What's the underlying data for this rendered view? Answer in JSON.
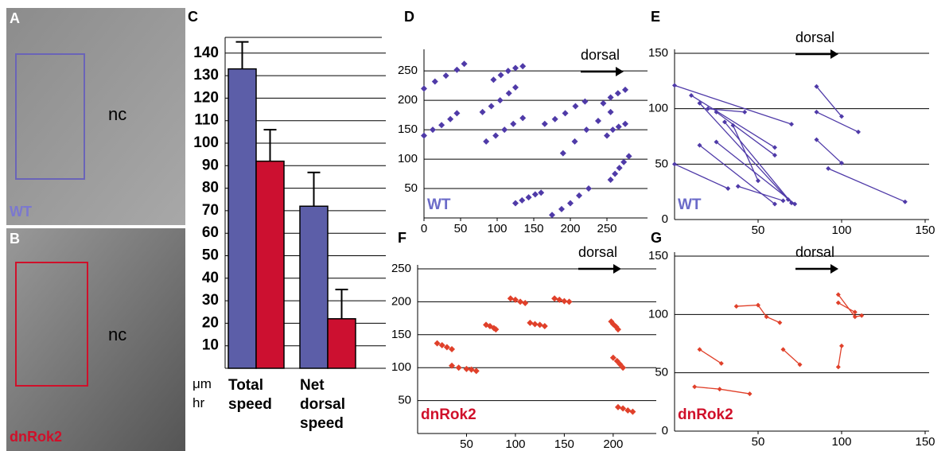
{
  "images": [
    {
      "panel": "A",
      "label": "nc",
      "genotype": "WT",
      "box_color": "#6a64b8",
      "genotype_color": "#7b78d0"
    },
    {
      "panel": "B",
      "label": "nc",
      "genotype": "dnRok2",
      "box_color": "#d0102a",
      "genotype_color": "#d0102a"
    }
  ],
  "chart_data": [
    {
      "type": "bar",
      "panel": "C",
      "categories": [
        "Total speed",
        "Net dorsal speed"
      ],
      "unit": "μm hr",
      "series": [
        {
          "color": "#5c5ea8",
          "values": [
            133,
            72
          ],
          "errors": [
            12,
            15
          ]
        },
        {
          "color": "#cc1030",
          "values": [
            92,
            22
          ],
          "errors": [
            14,
            13
          ]
        }
      ],
      "ylim": [
        0,
        147
      ],
      "yticks": [
        10,
        20,
        30,
        40,
        50,
        60,
        70,
        80,
        90,
        100,
        110,
        120,
        130,
        140
      ],
      "grid": true
    },
    {
      "type": "scatter",
      "panel": "D",
      "color": "#4f3aa8",
      "annotations": [
        "dorsal",
        "WT"
      ],
      "label_color": "#6a6ac8",
      "tracks": [
        {
          "x": [
            0,
            15,
            30,
            45,
            55
          ],
          "y": [
            220,
            232,
            242,
            252,
            262
          ]
        },
        {
          "x": [
            0,
            12,
            24,
            36,
            45
          ],
          "y": [
            140,
            150,
            158,
            168,
            178
          ]
        },
        {
          "x": [
            80,
            92,
            104,
            116,
            125
          ],
          "y": [
            180,
            190,
            200,
            212,
            222
          ]
        },
        {
          "x": [
            95,
            105,
            115,
            125,
            135
          ],
          "y": [
            235,
            243,
            250,
            255,
            258
          ]
        },
        {
          "x": [
            85,
            98,
            110,
            122,
            135
          ],
          "y": [
            130,
            140,
            150,
            160,
            170
          ]
        },
        {
          "x": [
            125,
            134,
            143,
            152,
            160
          ],
          "y": [
            25,
            30,
            35,
            40,
            43
          ]
        },
        {
          "x": [
            175,
            188,
            200,
            212,
            225
          ],
          "y": [
            5,
            15,
            25,
            38,
            50
          ]
        },
        {
          "x": [
            165,
            179,
            193,
            207,
            220
          ],
          "y": [
            160,
            168,
            178,
            190,
            198
          ]
        },
        {
          "x": [
            190,
            206,
            222,
            238,
            255
          ],
          "y": [
            110,
            130,
            150,
            165,
            180
          ]
        },
        {
          "x": [
            245,
            255,
            265,
            275
          ],
          "y": [
            195,
            205,
            212,
            218
          ]
        },
        {
          "x": [
            255,
            261,
            267,
            273,
            280
          ],
          "y": [
            65,
            75,
            85,
            95,
            105
          ]
        },
        {
          "x": [
            250,
            258,
            266,
            275
          ],
          "y": [
            140,
            150,
            155,
            160
          ]
        }
      ],
      "xlim": [
        0,
        300
      ],
      "xticks": [
        0,
        50,
        100,
        150,
        200,
        250
      ],
      "ylim": [
        0,
        280
      ],
      "yticks": [
        50,
        100,
        150,
        200,
        250
      ],
      "grid": true
    },
    {
      "type": "line",
      "panel": "E",
      "color": "#4f3aa8",
      "annotations": [
        "dorsal",
        "WT"
      ],
      "label_color": "#6a6ac8",
      "tracks": [
        {
          "x": [
            0,
            70
          ],
          "y": [
            121,
            86
          ]
        },
        {
          "x": [
            0,
            32
          ],
          "y": [
            50,
            28
          ]
        },
        {
          "x": [
            10,
            60
          ],
          "y": [
            112,
            65
          ]
        },
        {
          "x": [
            15,
            68
          ],
          "y": [
            105,
            18
          ]
        },
        {
          "x": [
            20,
            42
          ],
          "y": [
            100,
            97
          ]
        },
        {
          "x": [
            25,
            60
          ],
          "y": [
            97,
            58
          ]
        },
        {
          "x": [
            25,
            72
          ],
          "y": [
            70,
            14
          ]
        },
        {
          "x": [
            30,
            70
          ],
          "y": [
            88,
            15
          ]
        },
        {
          "x": [
            35,
            50
          ],
          "y": [
            85,
            35
          ]
        },
        {
          "x": [
            15,
            60
          ],
          "y": [
            67,
            14
          ]
        },
        {
          "x": [
            38,
            65
          ],
          "y": [
            30,
            17
          ]
        },
        {
          "x": [
            85,
            100
          ],
          "y": [
            120,
            93
          ]
        },
        {
          "x": [
            85,
            110
          ],
          "y": [
            97,
            79
          ]
        },
        {
          "x": [
            85,
            100
          ],
          "y": [
            72,
            51
          ]
        },
        {
          "x": [
            92,
            138
          ],
          "y": [
            46,
            16
          ]
        }
      ],
      "xlim": [
        0,
        150
      ],
      "xticks": [
        50,
        100,
        150
      ],
      "ylim": [
        0,
        150
      ],
      "yticks": [
        0,
        50,
        100,
        150
      ],
      "grid": true
    },
    {
      "type": "scatter",
      "panel": "F",
      "color": "#e0402a",
      "annotations": [
        "dorsal",
        "dnRok2"
      ],
      "label_color": "#d0102a",
      "tracks": [
        {
          "x": [
            20,
            25,
            30,
            35
          ],
          "y": [
            137,
            134,
            131,
            128
          ]
        },
        {
          "x": [
            35,
            42,
            50,
            55,
            60
          ],
          "y": [
            103,
            100,
            98,
            97,
            95
          ]
        },
        {
          "x": [
            70,
            74,
            78,
            80
          ],
          "y": [
            165,
            163,
            160,
            158
          ]
        },
        {
          "x": [
            95,
            100,
            105,
            110
          ],
          "y": [
            205,
            203,
            200,
            198
          ]
        },
        {
          "x": [
            115,
            120,
            125,
            130
          ],
          "y": [
            168,
            166,
            165,
            163
          ]
        },
        {
          "x": [
            140,
            145,
            150,
            155
          ],
          "y": [
            205,
            203,
            201,
            200
          ]
        },
        {
          "x": [
            198,
            200,
            203,
            205
          ],
          "y": [
            170,
            166,
            162,
            158
          ]
        },
        {
          "x": [
            200,
            204,
            207,
            210
          ],
          "y": [
            115,
            110,
            105,
            100
          ]
        },
        {
          "x": [
            205,
            210,
            215,
            220
          ],
          "y": [
            40,
            38,
            35,
            33
          ]
        }
      ],
      "xlim": [
        0,
        240
      ],
      "xticks": [
        50,
        100,
        150,
        200
      ],
      "ylim": [
        0,
        250
      ],
      "yticks": [
        50,
        100,
        150,
        200,
        250
      ],
      "grid": true
    },
    {
      "type": "line",
      "panel": "G",
      "color": "#e0402a",
      "annotations": [
        "dorsal",
        "dnRok2"
      ],
      "label_color": "#d0102a",
      "tracks": [
        {
          "x": [
            15,
            28
          ],
          "y": [
            70,
            58
          ]
        },
        {
          "x": [
            12,
            27,
            45
          ],
          "y": [
            38,
            36,
            32
          ]
        },
        {
          "x": [
            37,
            50,
            55,
            63
          ],
          "y": [
            107,
            108,
            98,
            93
          ]
        },
        {
          "x": [
            65,
            75
          ],
          "y": [
            70,
            57
          ]
        },
        {
          "x": [
            98,
            108,
            112
          ],
          "y": [
            117,
            98,
            99
          ]
        },
        {
          "x": [
            98,
            108
          ],
          "y": [
            110,
            102
          ]
        },
        {
          "x": [
            100,
            98
          ],
          "y": [
            73,
            55
          ]
        }
      ],
      "xlim": [
        0,
        150
      ],
      "xticks": [
        50,
        100,
        150
      ],
      "ylim": [
        0,
        150
      ],
      "yticks": [
        0,
        50,
        100,
        150
      ],
      "grid": true
    }
  ]
}
